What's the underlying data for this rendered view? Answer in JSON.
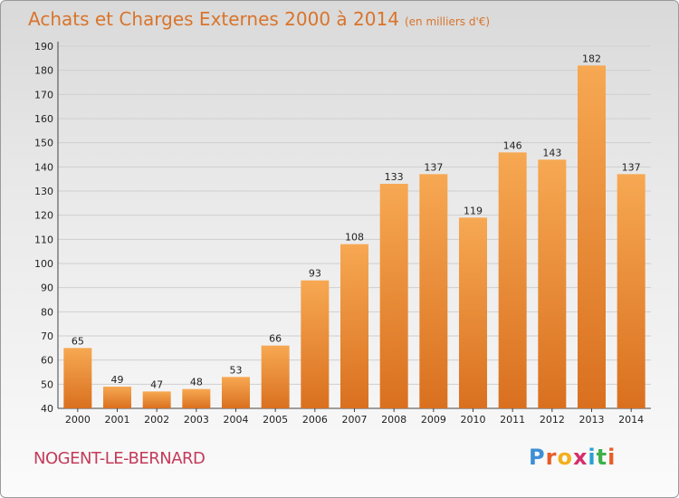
{
  "header": {
    "title": "Achats et Charges Externes 2000 à 2014",
    "unit": "(en milliers d'€)"
  },
  "footer": {
    "location": "NOGENT-LE-BERNARD",
    "logo_letters": [
      "P",
      "r",
      "o",
      "x",
      "i",
      "t",
      "i"
    ],
    "logo_colors": [
      "#3d8fd6",
      "#e85c2a",
      "#f2b01e",
      "#d62f6b",
      "#2aa0d6",
      "#3db04a",
      "#e85c2a"
    ]
  },
  "colors": {
    "bar_top": "#f7a852",
    "bar_bottom": "#d9701f",
    "grid": "#cfcfcf",
    "axis_text": "#222222"
  },
  "chart_data": {
    "type": "bar",
    "title": "Achats et Charges Externes 2000 à 2014",
    "subtitle": "(en milliers d'€)",
    "categories": [
      "2000",
      "2001",
      "2002",
      "2003",
      "2004",
      "2005",
      "2006",
      "2007",
      "2008",
      "2009",
      "2010",
      "2011",
      "2012",
      "2013",
      "2014"
    ],
    "values": [
      65,
      49,
      47,
      48,
      53,
      66,
      93,
      108,
      133,
      137,
      119,
      146,
      143,
      182,
      137
    ],
    "ylim": [
      40,
      190
    ],
    "yticks": [
      40,
      50,
      60,
      70,
      80,
      90,
      100,
      110,
      120,
      130,
      140,
      150,
      160,
      170,
      180,
      190
    ],
    "grid": true,
    "data_labels": true
  }
}
